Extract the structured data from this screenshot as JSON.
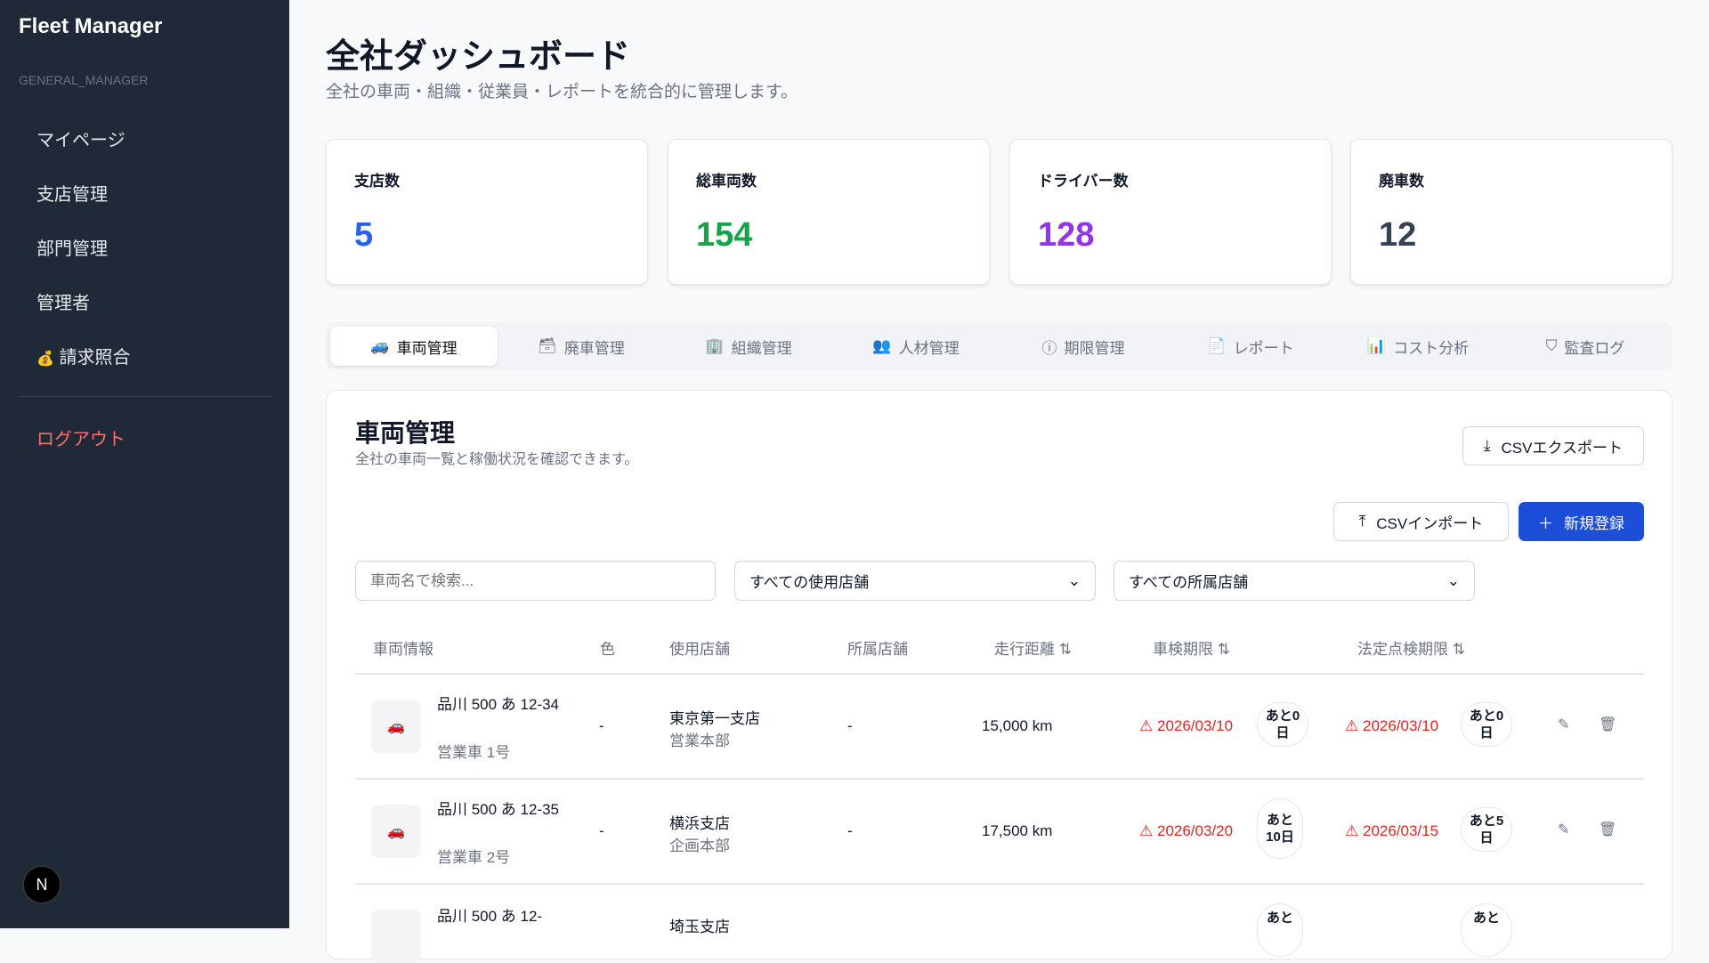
{
  "sidebar": {
    "brand": "Fleet Manager",
    "role": "GENERAL_MANAGER",
    "items": [
      {
        "label": "マイページ"
      },
      {
        "label": "支店管理"
      },
      {
        "label": "部門管理"
      },
      {
        "label": "管理者"
      },
      {
        "label": "請求照合",
        "icon": "money-bag-icon"
      }
    ],
    "logout": "ログアウト",
    "avatar": "N"
  },
  "header": {
    "title": "全社ダッシュボード",
    "subtitle": "全社の車両・組織・従業員・レポートを統合的に管理します。"
  },
  "stats": [
    {
      "label": "支店数",
      "value": "5",
      "color": "#2563eb"
    },
    {
      "label": "総車両数",
      "value": "154",
      "color": "#16a34a"
    },
    {
      "label": "ドライバー数",
      "value": "128",
      "color": "#9333ea"
    },
    {
      "label": "廃車数",
      "value": "12",
      "color": "#374151"
    }
  ],
  "tabs": [
    {
      "label": "車両管理",
      "active": true
    },
    {
      "label": "廃車管理"
    },
    {
      "label": "組織管理"
    },
    {
      "label": "人材管理"
    },
    {
      "label": "期限管理"
    },
    {
      "label": "レポート"
    },
    {
      "label": "コスト分析"
    },
    {
      "label": "監査ログ"
    }
  ],
  "panel": {
    "title": "車両管理",
    "subtitle": "全社の車両一覧と稼働状況を確認できます。",
    "csv_export": "CSVエクスポート",
    "csv_import": "CSVインポート",
    "new": "新規登録",
    "search_placeholder": "車両名で検索...",
    "filter_use": "すべての使用店舗",
    "filter_own": "すべての所属店舗"
  },
  "table": {
    "headers": [
      "車両情報",
      "色",
      "使用店舗",
      "所属店舗",
      "走行距離 ⇅",
      "車検期限 ⇅",
      "法定点検期限 ⇅"
    ],
    "rows": [
      {
        "plate": "品川 500 あ 12-34",
        "name": "営業車 1号",
        "color": "-",
        "use_store": "東京第一支店",
        "use_dept": "営業本部",
        "own_store": "-",
        "mileage": "15,000 km",
        "inspection": "2026/03/10",
        "inspection_left": "あと0日",
        "legal": "2026/03/10",
        "legal_left": "あと0日"
      },
      {
        "plate": "品川 500 あ 12-35",
        "name": "営業車 2号",
        "color": "-",
        "use_store": "横浜支店",
        "use_dept": "企画本部",
        "own_store": "-",
        "mileage": "17,500 km",
        "inspection": "2026/03/20",
        "inspection_left": "あと10日",
        "legal": "2026/03/15",
        "legal_left": "あと5日"
      },
      {
        "plate": "品川 500 あ 12-",
        "use_store": "埼玉支店",
        "inspection_left": "あと",
        "legal_left": "あと"
      }
    ]
  }
}
